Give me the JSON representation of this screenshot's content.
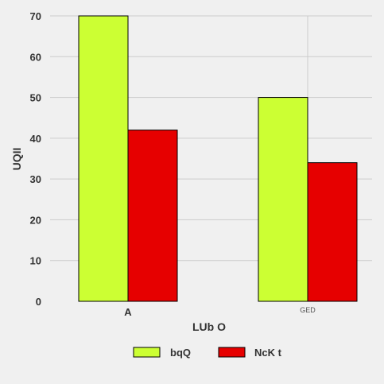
{
  "chart_data": {
    "type": "bar",
    "categories": [
      "A",
      "GED"
    ],
    "series": [
      {
        "name": "bqQ",
        "values": [
          70,
          50
        ],
        "color": "#ccff33"
      },
      {
        "name": "NcK t",
        "values": [
          42,
          34
        ],
        "color": "#e60000"
      }
    ],
    "xlabel": "LUb O",
    "ylabel": "UQII",
    "ylim": [
      0,
      70
    ],
    "yticks": [
      0,
      10,
      20,
      30,
      40,
      50,
      60,
      70
    ],
    "grid": true,
    "legend_position": "bottom-center"
  }
}
